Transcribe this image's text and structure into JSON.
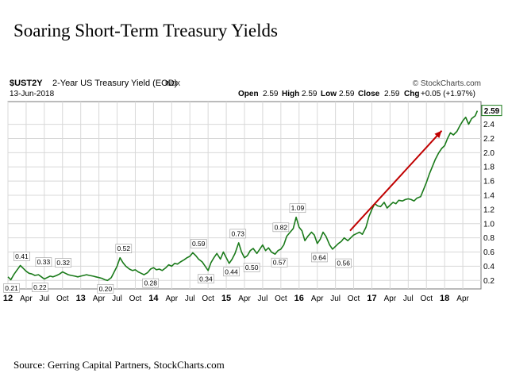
{
  "page": {
    "title": "Soaring Short-Term Treasury Yields",
    "source": "Source: Gerring Capital Partners, StockCharts.com"
  },
  "chart_data": {
    "type": "line",
    "symbol": "$UST2Y",
    "subtitle": "2-Year US Treasury Yield (EOD)",
    "index_tag": "INDX",
    "date": "13-Jun-2018",
    "watermark": "© StockCharts.com",
    "ohlc": {
      "open_label": "Open",
      "open": "2.59",
      "high_label": "High",
      "high": "2.59",
      "low_label": "Low",
      "low": "2.59",
      "close_label": "Close",
      "close": "2.59",
      "chg_label": "Chg",
      "chg": "+0.05 (+1.97%)"
    },
    "last_value": "2.59",
    "ylim": [
      0.08,
      2.72
    ],
    "xlim": [
      2012.0,
      2018.5
    ],
    "y_ticks": [
      "0.2",
      "0.4",
      "0.6",
      "0.8",
      "1.0",
      "1.2",
      "1.4",
      "1.6",
      "1.8",
      "2.0",
      "2.2",
      "2.4"
    ],
    "x_ticks": [
      {
        "x": 2012.0,
        "label": "12",
        "bold": true
      },
      {
        "x": 2012.25,
        "label": "Apr"
      },
      {
        "x": 2012.5,
        "label": "Jul"
      },
      {
        "x": 2012.75,
        "label": "Oct"
      },
      {
        "x": 2013.0,
        "label": "13",
        "bold": true
      },
      {
        "x": 2013.25,
        "label": "Apr"
      },
      {
        "x": 2013.5,
        "label": "Jul"
      },
      {
        "x": 2013.75,
        "label": "Oct"
      },
      {
        "x": 2014.0,
        "label": "14",
        "bold": true
      },
      {
        "x": 2014.25,
        "label": "Apr"
      },
      {
        "x": 2014.5,
        "label": "Jul"
      },
      {
        "x": 2014.75,
        "label": "Oct"
      },
      {
        "x": 2015.0,
        "label": "15",
        "bold": true
      },
      {
        "x": 2015.25,
        "label": "Apr"
      },
      {
        "x": 2015.5,
        "label": "Jul"
      },
      {
        "x": 2015.75,
        "label": "Oct"
      },
      {
        "x": 2016.0,
        "label": "16",
        "bold": true
      },
      {
        "x": 2016.25,
        "label": "Apr"
      },
      {
        "x": 2016.5,
        "label": "Jul"
      },
      {
        "x": 2016.75,
        "label": "Oct"
      },
      {
        "x": 2017.0,
        "label": "17",
        "bold": true
      },
      {
        "x": 2017.25,
        "label": "Apr"
      },
      {
        "x": 2017.5,
        "label": "Jul"
      },
      {
        "x": 2017.75,
        "label": "Oct"
      },
      {
        "x": 2018.0,
        "label": "18",
        "bold": true
      },
      {
        "x": 2018.25,
        "label": "Apr"
      }
    ],
    "grid": true,
    "series": [
      {
        "color": "#1a7a1a",
        "x": [
          2012.0,
          2012.04,
          2012.08,
          2012.12,
          2012.17,
          2012.21,
          2012.25,
          2012.29,
          2012.33,
          2012.37,
          2012.42,
          2012.46,
          2012.5,
          2012.54,
          2012.58,
          2012.62,
          2012.67,
          2012.71,
          2012.75,
          2012.79,
          2012.83,
          2012.87,
          2012.92,
          2012.96,
          2013.0,
          2013.04,
          2013.08,
          2013.12,
          2013.17,
          2013.21,
          2013.25,
          2013.29,
          2013.33,
          2013.37,
          2013.42,
          2013.46,
          2013.5,
          2013.54,
          2013.58,
          2013.62,
          2013.67,
          2013.71,
          2013.75,
          2013.79,
          2013.83,
          2013.87,
          2013.92,
          2013.96,
          2014.0,
          2014.04,
          2014.08,
          2014.12,
          2014.17,
          2014.21,
          2014.25,
          2014.29,
          2014.33,
          2014.37,
          2014.42,
          2014.46,
          2014.5,
          2014.54,
          2014.58,
          2014.62,
          2014.67,
          2014.71,
          2014.75,
          2014.79,
          2014.83,
          2014.87,
          2014.92,
          2014.96,
          2015.0,
          2015.04,
          2015.08,
          2015.12,
          2015.17,
          2015.21,
          2015.25,
          2015.29,
          2015.33,
          2015.37,
          2015.42,
          2015.46,
          2015.5,
          2015.54,
          2015.58,
          2015.62,
          2015.67,
          2015.71,
          2015.75,
          2015.79,
          2015.83,
          2015.87,
          2015.92,
          2015.96,
          2016.0,
          2016.04,
          2016.08,
          2016.12,
          2016.17,
          2016.21,
          2016.25,
          2016.29,
          2016.33,
          2016.37,
          2016.42,
          2016.46,
          2016.5,
          2016.54,
          2016.58,
          2016.62,
          2016.67,
          2016.71,
          2016.75,
          2016.79,
          2016.83,
          2016.87,
          2016.92,
          2016.96,
          2017.0,
          2017.04,
          2017.08,
          2017.12,
          2017.17,
          2017.21,
          2017.25,
          2017.29,
          2017.33,
          2017.37,
          2017.42,
          2017.46,
          2017.5,
          2017.54,
          2017.58,
          2017.62,
          2017.67,
          2017.71,
          2017.75,
          2017.79,
          2017.83,
          2017.87,
          2017.92,
          2017.96,
          2018.0,
          2018.04,
          2018.08,
          2018.12,
          2018.17,
          2018.21,
          2018.25,
          2018.29,
          2018.33,
          2018.37,
          2018.42,
          2018.45
        ],
        "y": [
          0.25,
          0.21,
          0.28,
          0.34,
          0.41,
          0.37,
          0.33,
          0.3,
          0.29,
          0.27,
          0.28,
          0.25,
          0.22,
          0.24,
          0.26,
          0.25,
          0.27,
          0.29,
          0.32,
          0.3,
          0.28,
          0.27,
          0.26,
          0.25,
          0.26,
          0.27,
          0.28,
          0.27,
          0.26,
          0.25,
          0.24,
          0.23,
          0.21,
          0.2,
          0.24,
          0.32,
          0.4,
          0.52,
          0.45,
          0.4,
          0.36,
          0.34,
          0.35,
          0.32,
          0.3,
          0.28,
          0.31,
          0.36,
          0.38,
          0.35,
          0.36,
          0.34,
          0.38,
          0.42,
          0.4,
          0.44,
          0.43,
          0.46,
          0.49,
          0.52,
          0.54,
          0.59,
          0.55,
          0.5,
          0.46,
          0.4,
          0.34,
          0.45,
          0.52,
          0.58,
          0.5,
          0.6,
          0.52,
          0.44,
          0.5,
          0.58,
          0.73,
          0.6,
          0.52,
          0.55,
          0.62,
          0.65,
          0.58,
          0.64,
          0.7,
          0.62,
          0.66,
          0.6,
          0.57,
          0.62,
          0.64,
          0.7,
          0.82,
          0.87,
          0.93,
          1.09,
          0.95,
          0.9,
          0.76,
          0.82,
          0.88,
          0.84,
          0.72,
          0.78,
          0.88,
          0.82,
          0.7,
          0.64,
          0.68,
          0.72,
          0.75,
          0.8,
          0.76,
          0.8,
          0.84,
          0.86,
          0.88,
          0.85,
          0.95,
          1.1,
          1.2,
          1.28,
          1.25,
          1.24,
          1.3,
          1.22,
          1.26,
          1.3,
          1.28,
          1.33,
          1.32,
          1.34,
          1.35,
          1.34,
          1.32,
          1.36,
          1.38,
          1.48,
          1.58,
          1.7,
          1.8,
          1.9,
          2.0,
          2.06,
          2.1,
          2.2,
          2.28,
          2.25,
          2.3,
          2.38,
          2.45,
          2.5,
          2.4,
          2.48,
          2.52,
          2.59
        ]
      }
    ],
    "annotations": [
      {
        "x": 2012.05,
        "y": 0.21,
        "label": "0.21",
        "pos": "below"
      },
      {
        "x": 2012.19,
        "y": 0.41,
        "label": "0.41",
        "pos": "above"
      },
      {
        "x": 2012.44,
        "y": 0.22,
        "label": "0.22",
        "pos": "below"
      },
      {
        "x": 2012.49,
        "y": 0.33,
        "label": "0.33",
        "pos": "above"
      },
      {
        "x": 2012.76,
        "y": 0.32,
        "label": "0.32",
        "pos": "above"
      },
      {
        "x": 2013.34,
        "y": 0.2,
        "label": "0.20",
        "pos": "below"
      },
      {
        "x": 2013.59,
        "y": 0.52,
        "label": "0.52",
        "pos": "above"
      },
      {
        "x": 2013.96,
        "y": 0.28,
        "label": "0.28",
        "pos": "below"
      },
      {
        "x": 2014.62,
        "y": 0.59,
        "label": "0.59",
        "pos": "above"
      },
      {
        "x": 2014.72,
        "y": 0.34,
        "label": "0.34",
        "pos": "below"
      },
      {
        "x": 2015.07,
        "y": 0.44,
        "label": "0.44",
        "pos": "below"
      },
      {
        "x": 2015.16,
        "y": 0.73,
        "label": "0.73",
        "pos": "above"
      },
      {
        "x": 2015.35,
        "y": 0.5,
        "label": "0.50",
        "pos": "below"
      },
      {
        "x": 2015.75,
        "y": 0.82,
        "label": "0.82",
        "pos": "above"
      },
      {
        "x": 2015.73,
        "y": 0.57,
        "label": "0.57",
        "pos": "below"
      },
      {
        "x": 2015.98,
        "y": 1.09,
        "label": "1.09",
        "pos": "above"
      },
      {
        "x": 2016.28,
        "y": 0.64,
        "label": "0.64",
        "pos": "below"
      },
      {
        "x": 2016.61,
        "y": 0.56,
        "label": "0.56",
        "pos": "below"
      }
    ],
    "trend_arrow": {
      "color": "#c00000",
      "from": [
        2016.7,
        0.9
      ],
      "to": [
        2017.96,
        2.31
      ]
    }
  }
}
